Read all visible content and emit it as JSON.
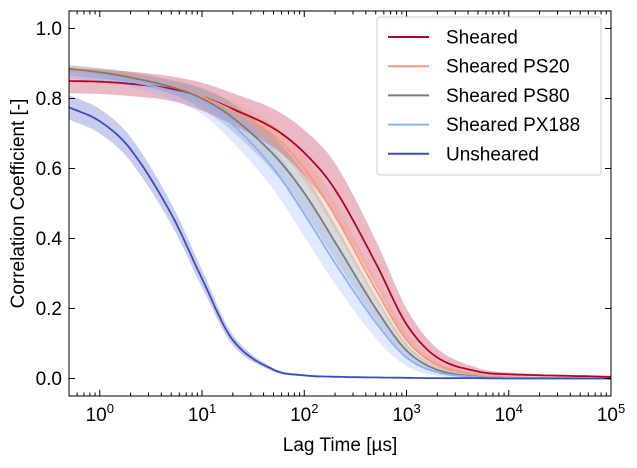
{
  "chart_data": {
    "type": "line",
    "xlabel": "Lag Time [µs]",
    "ylabel": "Correlation Coefficient [-]",
    "xscale": "log",
    "xlim": [
      0.5,
      100000
    ],
    "ylim": [
      -0.05,
      1.05
    ],
    "x_ticks": [
      {
        "value": 1,
        "base": "10",
        "exp": "0"
      },
      {
        "value": 10,
        "base": "10",
        "exp": "1"
      },
      {
        "value": 100,
        "base": "10",
        "exp": "2"
      },
      {
        "value": 1000,
        "base": "10",
        "exp": "3"
      },
      {
        "value": 10000,
        "base": "10",
        "exp": "4"
      },
      {
        "value": 100000,
        "base": "10",
        "exp": "5"
      }
    ],
    "y_ticks": [
      "0.0",
      "0.2",
      "0.4",
      "0.6",
      "0.8",
      "1.0"
    ],
    "grid": false,
    "legend_position": "top-right",
    "x": [
      0.5,
      1,
      2,
      5,
      10,
      20,
      50,
      100,
      200,
      500,
      1000,
      2000,
      5000,
      10000,
      100000
    ],
    "series": [
      {
        "name": "Sheared",
        "color": "#b40426",
        "values": [
          0.85,
          0.848,
          0.842,
          0.828,
          0.805,
          0.77,
          0.715,
          0.645,
          0.54,
          0.33,
          0.155,
          0.06,
          0.02,
          0.012,
          0.005
        ],
        "band": [
          0.035,
          0.035,
          0.035,
          0.035,
          0.04,
          0.045,
          0.055,
          0.065,
          0.075,
          0.065,
          0.045,
          0.025,
          0.01,
          0.005,
          0.002
        ]
      },
      {
        "name": "Sheared PS20",
        "color": "#f49a7b",
        "values": [
          0.885,
          0.875,
          0.86,
          0.835,
          0.805,
          0.765,
          0.695,
          0.6,
          0.465,
          0.255,
          0.11,
          0.04,
          0.01,
          0.004,
          0.0
        ],
        "band": [
          0.01,
          0.01,
          0.012,
          0.015,
          0.02,
          0.025,
          0.03,
          0.035,
          0.04,
          0.03,
          0.02,
          0.01,
          0.005,
          0.003,
          0.001
        ]
      },
      {
        "name": "Sheared PS80",
        "color": "#7b7b7b",
        "values": [
          0.885,
          0.875,
          0.86,
          0.833,
          0.8,
          0.745,
          0.64,
          0.53,
          0.39,
          0.2,
          0.08,
          0.025,
          0.005,
          0.002,
          0.0
        ],
        "band": [
          0.01,
          0.012,
          0.015,
          0.02,
          0.03,
          0.04,
          0.05,
          0.055,
          0.05,
          0.035,
          0.02,
          0.01,
          0.004,
          0.002,
          0.001
        ]
      },
      {
        "name": "Sheared PX188",
        "color": "#8db0fe",
        "values": [
          0.87,
          0.86,
          0.848,
          0.822,
          0.79,
          0.725,
          0.6,
          0.47,
          0.33,
          0.16,
          0.06,
          0.018,
          0.004,
          0.002,
          0.0
        ],
        "band": [
          0.01,
          0.012,
          0.015,
          0.025,
          0.035,
          0.05,
          0.06,
          0.065,
          0.06,
          0.045,
          0.025,
          0.01,
          0.004,
          0.002,
          0.001
        ]
      },
      {
        "name": "Unsheared",
        "color": "#3b4cc0",
        "values": [
          0.775,
          0.735,
          0.655,
          0.47,
          0.285,
          0.11,
          0.025,
          0.009,
          0.005,
          0.003,
          0.002,
          0.001,
          0.001,
          0.0,
          0.0
        ],
        "band": [
          0.035,
          0.035,
          0.035,
          0.03,
          0.025,
          0.015,
          0.005,
          0.003,
          0.002,
          0.002,
          0.001,
          0.001,
          0.001,
          0.001,
          0.001
        ]
      }
    ]
  }
}
